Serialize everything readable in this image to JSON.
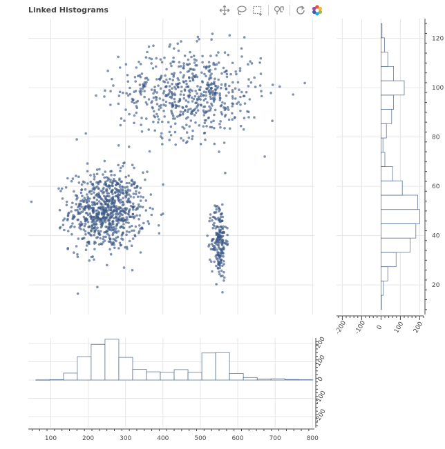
{
  "title": "Linked Histograms",
  "toolbar": {
    "tools": [
      {
        "name": "pan-tool",
        "icon": "move-arrows-icon",
        "active": true
      },
      {
        "name": "lasso-select-tool",
        "icon": "lasso-icon",
        "active": false
      },
      {
        "name": "box-select-tool",
        "icon": "box-select-icon",
        "active": false
      },
      {
        "name": "hover-tool",
        "icon": "hover-icon",
        "active": true
      },
      {
        "name": "reset-tool",
        "icon": "reset-icon",
        "active": false
      },
      {
        "name": "bokeh-logo",
        "icon": "bokeh-logo-icon",
        "active": false
      }
    ]
  },
  "colors": {
    "points": "#3a5785",
    "hist_fill": "#ffffff",
    "hist_stroke": "#3a5785",
    "grid": "#e6e6e6",
    "axis": "#444444"
  },
  "chart_data": [
    {
      "type": "scatter",
      "title": "",
      "xlabel": "",
      "ylabel": "",
      "xlim": [
        40,
        805
      ],
      "ylim": [
        8,
        128
      ],
      "grid": true,
      "clusters": [
        {
          "center_x": 250,
          "center_y": 50,
          "std_x": 50,
          "std_y": 8,
          "count": 800
        },
        {
          "center_x": 550,
          "center_y": 38,
          "std_x": 10,
          "std_y": 8,
          "count": 200
        },
        {
          "center_x": 475,
          "center_y": 98,
          "std_x": 95,
          "std_y": 9,
          "count": 600
        }
      ]
    },
    {
      "type": "bar",
      "orientation": "vertical",
      "title": "",
      "bin_edges": [
        60,
        97,
        134,
        171,
        208,
        245,
        282,
        319,
        356,
        393,
        430,
        467,
        504,
        541,
        578,
        615,
        652,
        689,
        726,
        763,
        800
      ],
      "counts": [
        1,
        2,
        38,
        128,
        195,
        223,
        124,
        58,
        45,
        42,
        57,
        42,
        148,
        150,
        36,
        14,
        5,
        7,
        3,
        2
      ],
      "xlim": [
        40,
        805
      ],
      "ylim": [
        -260,
        230
      ],
      "x_ticks": [
        100,
        200,
        300,
        400,
        500,
        600,
        700,
        800
      ],
      "y_ticks": [
        -200,
        -100,
        0,
        100,
        200
      ],
      "grid": true
    },
    {
      "type": "bar",
      "orientation": "horizontal",
      "title": "",
      "bin_edges": [
        10,
        15.8,
        21.6,
        27.4,
        33.2,
        39,
        44.8,
        50.6,
        56.4,
        62.2,
        68,
        73.8,
        79.6,
        85.4,
        91.2,
        97,
        102.8,
        108.6,
        114.4,
        120.2,
        126
      ],
      "counts": [
        2,
        12,
        35,
        78,
        150,
        180,
        200,
        190,
        110,
        60,
        20,
        10,
        28,
        55,
        65,
        120,
        65,
        35,
        18,
        5
      ],
      "ylim": [
        8,
        128
      ],
      "xlim": [
        -230,
        220
      ],
      "x_ticks": [
        -200,
        -100,
        0,
        100,
        200
      ],
      "y_ticks": [
        20,
        40,
        60,
        80,
        100,
        120
      ],
      "grid": true
    }
  ]
}
